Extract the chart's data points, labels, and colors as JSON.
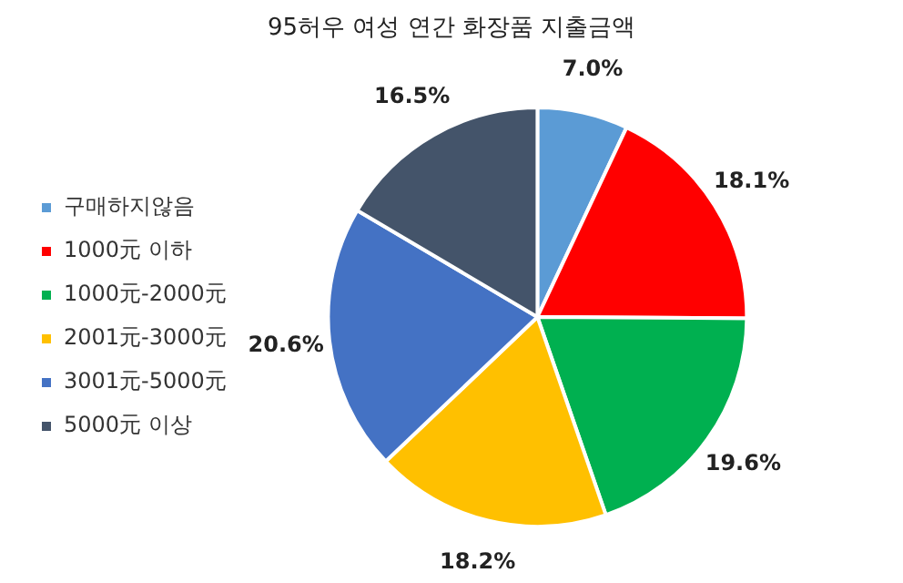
{
  "chart_data": {
    "type": "pie",
    "title": "95허우 여성 연간 화장품 지출금액",
    "categories": [
      "구매하지않음",
      "1000元 이하",
      "1000元-2000元",
      "2001元-3000元",
      "3001元-5000元",
      "5000元 이상"
    ],
    "values": [
      7.0,
      18.1,
      19.6,
      18.2,
      20.6,
      16.5
    ],
    "colors": [
      "#5b9bd5",
      "#ff0000",
      "#00b050",
      "#ffc000",
      "#4472c4",
      "#44546a"
    ],
    "value_labels": [
      "7.0%",
      "18.1%",
      "19.6%",
      "18.2%",
      "20.6%",
      "16.5%"
    ],
    "legend": "left"
  }
}
